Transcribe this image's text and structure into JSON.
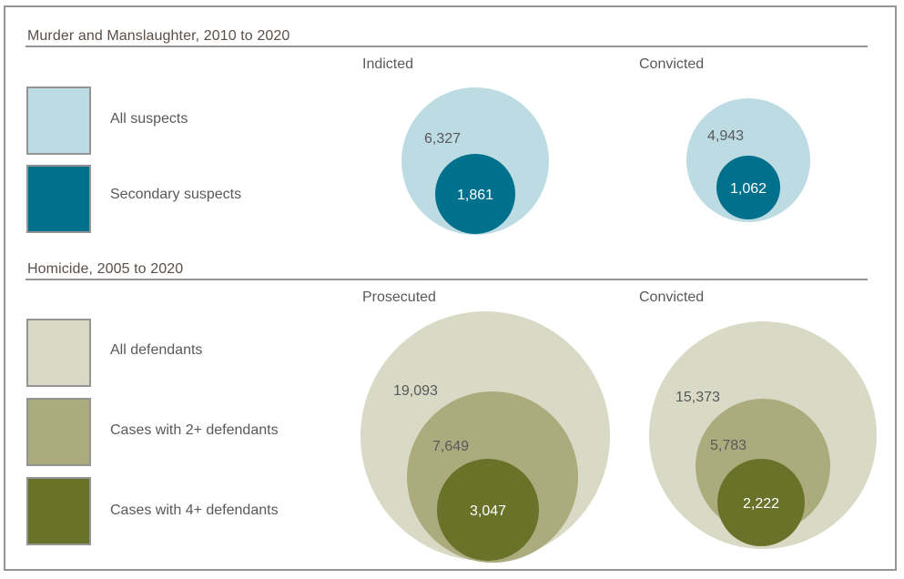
{
  "chart_data": [
    {
      "type": "nested-circles",
      "title": "Murder and Manslaughter, 2010 to 2020",
      "legend": [
        {
          "label": "All suspects",
          "color": "#bcdbe3"
        },
        {
          "label": "Secondary suspects",
          "color": "#00718c"
        }
      ],
      "groups": [
        {
          "label": "Indicted",
          "values": [
            6327,
            1861
          ],
          "value_labels": [
            "6,327",
            "1,861"
          ]
        },
        {
          "label": "Convicted",
          "values": [
            4943,
            1062
          ],
          "value_labels": [
            "4,943",
            "1,062"
          ]
        }
      ]
    },
    {
      "type": "nested-circles",
      "title": "Homicide, 2005 to 2020",
      "legend": [
        {
          "label": "All defendants",
          "color": "#d8dac5"
        },
        {
          "label": "Cases with 2+ defendants",
          "color": "#acab7e"
        },
        {
          "label": "Cases with 4+ defendants",
          "color": "#687229"
        }
      ],
      "groups": [
        {
          "label": "Prosecuted",
          "values": [
            19093,
            7649,
            3047
          ],
          "value_labels": [
            "19,093",
            "7,649",
            "3,047"
          ]
        },
        {
          "label": "Convicted",
          "values": [
            15373,
            5783,
            2222
          ],
          "value_labels": [
            "15,373",
            "5,783",
            "2,222"
          ]
        }
      ]
    }
  ]
}
